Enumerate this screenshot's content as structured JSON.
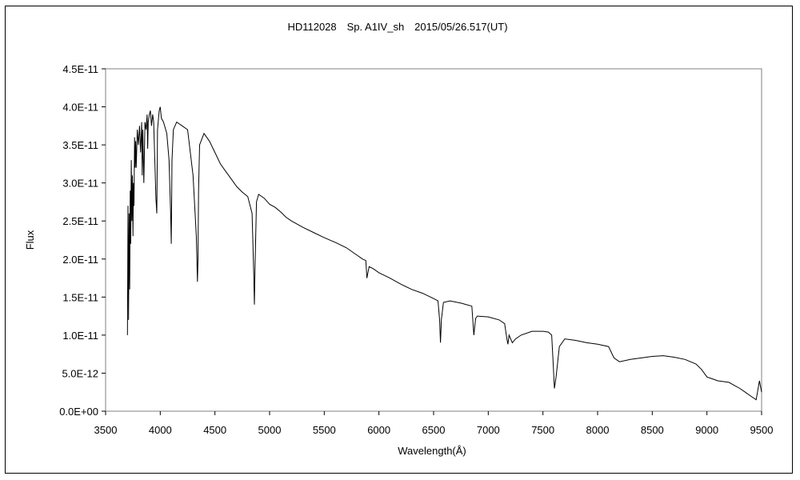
{
  "chart_data": {
    "type": "line",
    "title": "HD112028　Sp. A1IV_sh　2015/05/26.517(UT)",
    "xlabel": "Wavelength(Å)",
    "ylabel": "Flux",
    "xlim": [
      3500,
      9500
    ],
    "ylim": [
      0,
      4.5e-11
    ],
    "x_ticks": [
      "3500",
      "4000",
      "4500",
      "5000",
      "5500",
      "6000",
      "6500",
      "7000",
      "7500",
      "8000",
      "8500",
      "9000",
      "9500"
    ],
    "y_ticks": [
      "0.0E+00",
      "5.0E-12",
      "1.0E-11",
      "1.5E-11",
      "2.0E-11",
      "2.5E-11",
      "3.0E-11",
      "3.5E-11",
      "4.0E-11",
      "4.5E-11"
    ],
    "grid": false,
    "legend": "none",
    "line_color": "#000000",
    "series": [
      {
        "x": [
          3700,
          3705,
          3710,
          3715,
          3720,
          3725,
          3730,
          3735,
          3740,
          3745,
          3750,
          3755,
          3760,
          3765,
          3770,
          3775,
          3780,
          3790,
          3800,
          3810,
          3820,
          3830,
          3835,
          3840,
          3850,
          3860,
          3870,
          3880,
          3885,
          3890,
          3900,
          3910,
          3920,
          3930,
          3940,
          3960,
          3968,
          3975,
          3990,
          4000,
          4010,
          4030,
          4060,
          4080,
          4095,
          4101,
          4107,
          4120,
          4150,
          4200,
          4250,
          4300,
          4330,
          4340,
          4345,
          4350,
          4360,
          4400,
          4450,
          4500,
          4550,
          4600,
          4650,
          4700,
          4750,
          4800,
          4840,
          4855,
          4861,
          4867,
          4880,
          4900,
          4950,
          5000,
          5050,
          5100,
          5150,
          5200,
          5300,
          5400,
          5500,
          5600,
          5700,
          5800,
          5850,
          5880,
          5890,
          5896,
          5910,
          5950,
          6000,
          6100,
          6200,
          6300,
          6400,
          6500,
          6540,
          6555,
          6563,
          6571,
          6590,
          6650,
          6750,
          6850,
          6868,
          6875,
          6885,
          6900,
          7000,
          7100,
          7150,
          7170,
          7180,
          7190,
          7220,
          7250,
          7300,
          7400,
          7500,
          7550,
          7580,
          7595,
          7605,
          7620,
          7650,
          7700,
          7800,
          7900,
          8000,
          8100,
          8150,
          8200,
          8300,
          8400,
          8500,
          8600,
          8700,
          8800,
          8850,
          8900,
          8950,
          9000,
          9100,
          9200,
          9300,
          9350,
          9400,
          9450,
          9480,
          9500
        ],
        "y": [
          1e-11,
          2.7e-11,
          1.2e-11,
          2.6e-11,
          1.6e-11,
          2.9e-11,
          2.2e-11,
          3.3e-11,
          2.5e-11,
          3.1e-11,
          2.3e-11,
          3e-11,
          2.7e-11,
          3.6e-11,
          3.2e-11,
          3.55e-11,
          3.2e-11,
          3.7e-11,
          3.5e-11,
          3.75e-11,
          3.4e-11,
          3.8e-11,
          3.1e-11,
          3.7e-11,
          3e-11,
          3.8e-11,
          3.7e-11,
          3.9e-11,
          3.45e-11,
          3.8e-11,
          3.9e-11,
          3.95e-11,
          3.75e-11,
          3.9e-11,
          3.8e-11,
          2.8e-11,
          2.6e-11,
          3.7e-11,
          3.95e-11,
          4e-11,
          3.85e-11,
          3.8e-11,
          3.65e-11,
          3.3e-11,
          2.6e-11,
          2.2e-11,
          3.3e-11,
          3.7e-11,
          3.8e-11,
          3.75e-11,
          3.7e-11,
          3.1e-11,
          2.3e-11,
          1.7e-11,
          2e-11,
          2.9e-11,
          3.5e-11,
          3.65e-11,
          3.55e-11,
          3.4e-11,
          3.25e-11,
          3.15e-11,
          3.05e-11,
          2.95e-11,
          2.88e-11,
          2.82e-11,
          2.6e-11,
          1.8e-11,
          1.4e-11,
          1.9e-11,
          2.75e-11,
          2.85e-11,
          2.8e-11,
          2.72e-11,
          2.68e-11,
          2.62e-11,
          2.55e-11,
          2.5e-11,
          2.42e-11,
          2.35e-11,
          2.28e-11,
          2.22e-11,
          2.15e-11,
          2.05e-11,
          2e-11,
          1.98e-11,
          1.75e-11,
          1.8e-11,
          1.9e-11,
          1.87e-11,
          1.82e-11,
          1.75e-11,
          1.67e-11,
          1.6e-11,
          1.55e-11,
          1.48e-11,
          1.45e-11,
          1.2e-11,
          9e-12,
          1.2e-11,
          1.43e-11,
          1.45e-11,
          1.42e-11,
          1.38e-11,
          1e-11,
          1.1e-11,
          1.22e-11,
          1.25e-11,
          1.24e-11,
          1.2e-11,
          1.15e-11,
          9.5e-12,
          8.8e-12,
          1e-11,
          9e-12,
          9.5e-12,
          1e-11,
          1.05e-11,
          1.05e-11,
          1.04e-11,
          1e-11,
          6e-12,
          3e-12,
          4.5e-12,
          8.5e-12,
          9.5e-12,
          9.3e-12,
          9e-12,
          8.8e-12,
          8.5e-12,
          7e-12,
          6.5e-12,
          6.8e-12,
          7e-12,
          7.2e-12,
          7.3e-12,
          7.1e-12,
          6.8e-12,
          6.5e-12,
          6.2e-12,
          5.5e-12,
          4.5e-12,
          4e-12,
          3.8e-12,
          3e-12,
          2.5e-12,
          2e-12,
          1.5e-12,
          4e-12,
          2.5e-12
        ]
      }
    ]
  }
}
